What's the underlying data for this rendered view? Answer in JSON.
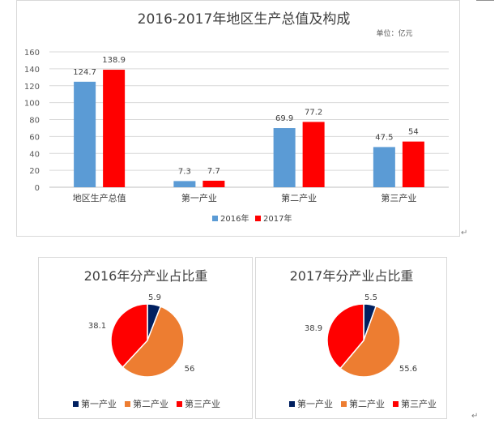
{
  "chart_data": [
    {
      "type": "bar",
      "title": "2016-2017年地区生产总值及构成",
      "unit_note": "单位：亿元",
      "categories": [
        "地区生产总值",
        "第一产业",
        "第二产业",
        "第三产业"
      ],
      "series": [
        {
          "name": "2016年",
          "color": "#5b9bd5",
          "values": [
            124.7,
            7.3,
            69.9,
            47.5
          ]
        },
        {
          "name": "2017年",
          "color": "#ff0000",
          "values": [
            138.9,
            7.7,
            77.2,
            54
          ]
        }
      ],
      "ylim": [
        0,
        160
      ],
      "yticks": [
        0,
        20,
        40,
        60,
        80,
        100,
        120,
        140,
        160
      ],
      "grid": true,
      "legend": "bottom"
    },
    {
      "type": "pie",
      "title": "2016年分产业占比重",
      "labels": [
        "第一产业",
        "第二产业",
        "第三产业"
      ],
      "values": [
        5.9,
        56,
        38.1
      ],
      "colors": [
        "#002060",
        "#ed7d31",
        "#ff0000"
      ],
      "legend": "bottom"
    },
    {
      "type": "pie",
      "title": "2017年分产业占比重",
      "labels": [
        "第一产业",
        "第二产业",
        "第三产业"
      ],
      "values": [
        5.5,
        55.6,
        38.9
      ],
      "colors": [
        "#002060",
        "#ed7d31",
        "#ff0000"
      ],
      "legend": "bottom"
    }
  ]
}
